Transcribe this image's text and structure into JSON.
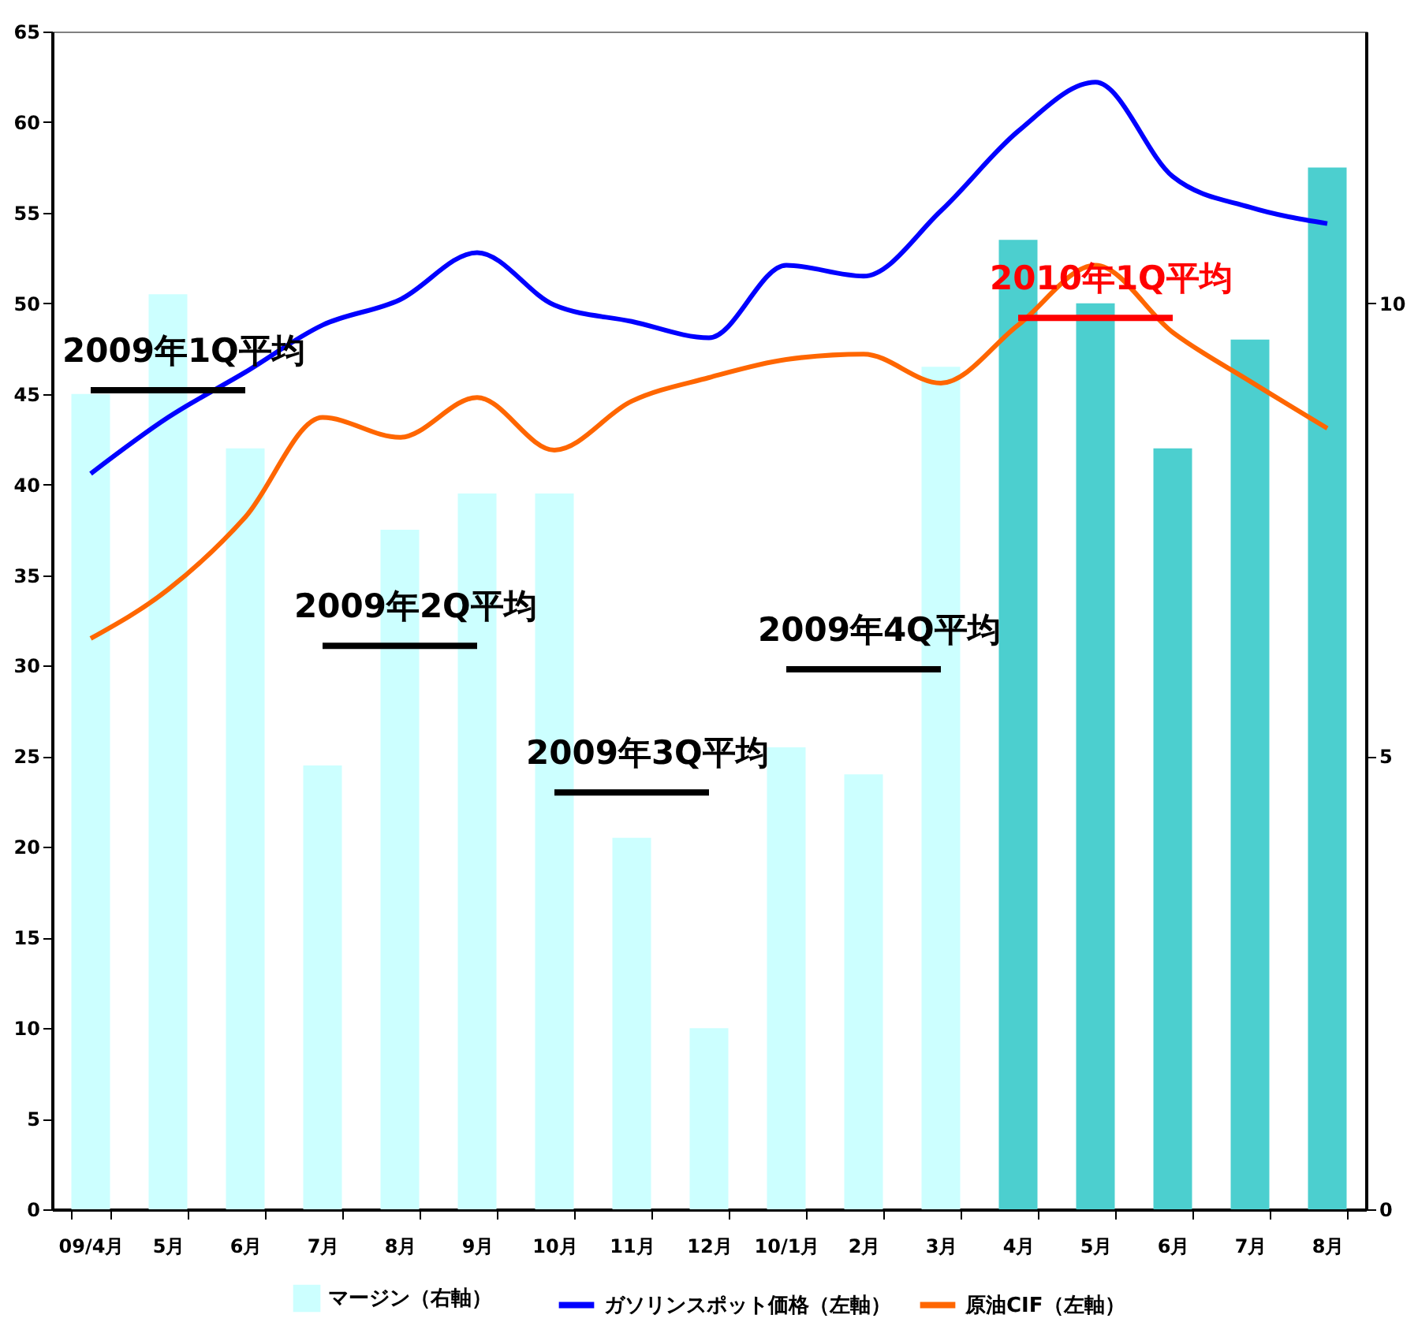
{
  "chart_data": {
    "type": "bar",
    "categories": [
      "09/4月",
      "5月",
      "6月",
      "7月",
      "8月",
      "9月",
      "10月",
      "11月",
      "12月",
      "10/1月",
      "2月",
      "3月",
      "4月",
      "5月",
      "6月",
      "7月",
      "8月"
    ],
    "ylim": [
      0,
      65
    ],
    "yticks": [
      0,
      5,
      10,
      15,
      20,
      25,
      30,
      35,
      40,
      45,
      50,
      55,
      60,
      65
    ],
    "y2lim": [
      0,
      13
    ],
    "y2ticks": [
      0,
      5,
      10
    ],
    "grid": false,
    "legend": "bottom",
    "series": [
      {
        "name": "マージン（右軸）",
        "axis": "y2",
        "color": "#ccffff",
        "colors": [
          "#ccffff",
          "#ccffff",
          "#ccffff",
          "#ccffff",
          "#ccffff",
          "#ccffff",
          "#ccffff",
          "#ccffff",
          "#ccffff",
          "#ccffff",
          "#ccffff",
          "#ccffff",
          "#4ccfcf",
          "#4ccfcf",
          "#4ccfcf",
          "#4ccfcf",
          "#4ccfcf"
        ],
        "values": [
          9.0,
          10.1,
          8.4,
          4.9,
          7.5,
          7.9,
          7.9,
          4.1,
          2.0,
          5.1,
          4.8,
          9.3,
          10.7,
          10.0,
          8.4,
          9.6,
          11.5
        ]
      },
      {
        "name": "ガソリンスポット価格（左軸）",
        "type": "line",
        "color": "#0000ff",
        "values": [
          40.6,
          43.7,
          46.2,
          48.8,
          50.2,
          52.8,
          49.9,
          49.0,
          48.1,
          52.1,
          51.5,
          55.1,
          59.5,
          62.2,
          57.0,
          55.3,
          54.4
        ]
      },
      {
        "name": "原油CIF（左軸）",
        "type": "line",
        "color": "#ff6600",
        "values": [
          31.5,
          34.2,
          38.2,
          43.7,
          42.6,
          44.8,
          41.9,
          44.6,
          45.9,
          46.9,
          47.2,
          45.6,
          48.8,
          52.1,
          48.4,
          45.7,
          43.1
        ]
      },
      {
        "name": "2009年1Q平均",
        "type": "line",
        "color": "#000000",
        "values": [
          45.2,
          45.2,
          45.2,
          null,
          null,
          null,
          null,
          null,
          null,
          null,
          null,
          null,
          null,
          null,
          null,
          null,
          null
        ]
      },
      {
        "name": "2009年2Q平均",
        "type": "line",
        "color": "#000000",
        "values": [
          null,
          null,
          null,
          31.1,
          31.1,
          31.1,
          null,
          null,
          null,
          null,
          null,
          null,
          null,
          null,
          null,
          null,
          null
        ]
      },
      {
        "name": "2009年3Q平均",
        "type": "line",
        "color": "#000000",
        "values": [
          null,
          null,
          null,
          null,
          null,
          null,
          23.0,
          23.0,
          23.0,
          null,
          null,
          null,
          null,
          null,
          null,
          null,
          null
        ]
      },
      {
        "name": "2009年4Q平均",
        "type": "line",
        "color": "#000000",
        "values": [
          null,
          null,
          null,
          null,
          null,
          null,
          null,
          null,
          null,
          29.8,
          29.8,
          29.8,
          null,
          null,
          null,
          null,
          null
        ]
      },
      {
        "name": "2010年1Q平均",
        "type": "line",
        "color": "#ff0000",
        "values": [
          null,
          null,
          null,
          null,
          null,
          null,
          null,
          null,
          null,
          null,
          null,
          null,
          49.2,
          49.2,
          49.2,
          null,
          null
        ]
      }
    ]
  }
}
